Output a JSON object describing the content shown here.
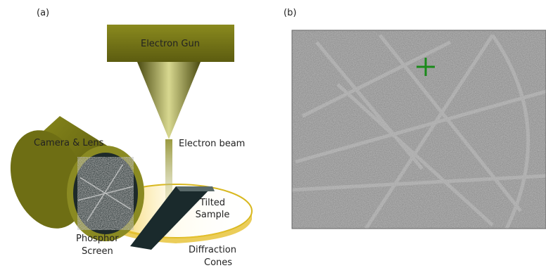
{
  "panels": {
    "a": {
      "label": "(a)"
    },
    "b": {
      "label": "(b)"
    }
  },
  "labels": {
    "electron_gun": "Electron Gun",
    "electron_beam": "Electron beam",
    "camera": "Camera & Lens",
    "sample": [
      "Tilted",
      "Sample"
    ],
    "screen": [
      "Phosphor",
      "Screen"
    ],
    "cones": [
      "Diffraction",
      "Cones"
    ]
  }
}
